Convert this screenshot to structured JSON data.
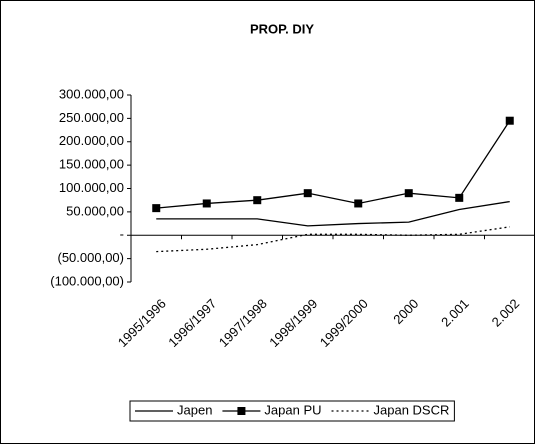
{
  "chart_data": {
    "type": "line",
    "title": "PROP. DIY",
    "categories": [
      "1995/1996",
      "1996/1997",
      "1997/1998",
      "1998/1999",
      "1999/2000",
      "2000",
      "2.001",
      "2.002"
    ],
    "series": [
      {
        "name": "Japen",
        "color": "#000000",
        "dash": "solid",
        "marker": "none",
        "values": [
          35000,
          35000,
          35000,
          20000,
          25000,
          28000,
          55000,
          72000
        ]
      },
      {
        "name": "Japan PU",
        "color": "#000000",
        "dash": "solid",
        "marker": "square",
        "values": [
          58000,
          68000,
          75000,
          90000,
          68000,
          90000,
          80000,
          245000
        ]
      },
      {
        "name": "Japan DSCR",
        "color": "#000000",
        "dash": "dotted",
        "marker": "none",
        "values": [
          -35000,
          -30000,
          -20000,
          2000,
          2000,
          0,
          2000,
          18000
        ]
      }
    ],
    "ylim": [
      -100000,
      300000
    ],
    "yticks": [
      {
        "value": 300000,
        "label": "300.000,00"
      },
      {
        "value": 250000,
        "label": "250.000,00"
      },
      {
        "value": 200000,
        "label": "200.000,00"
      },
      {
        "value": 150000,
        "label": "150.000,00"
      },
      {
        "value": 100000,
        "label": "100.000,00"
      },
      {
        "value": 50000,
        "label": "50.000,00"
      },
      {
        "value": 0,
        "label": "-"
      },
      {
        "value": -50000,
        "label": "(50.000,00)"
      },
      {
        "value": -100000,
        "label": "(100.000,00)"
      }
    ],
    "grid": false,
    "legend": "bottom"
  }
}
